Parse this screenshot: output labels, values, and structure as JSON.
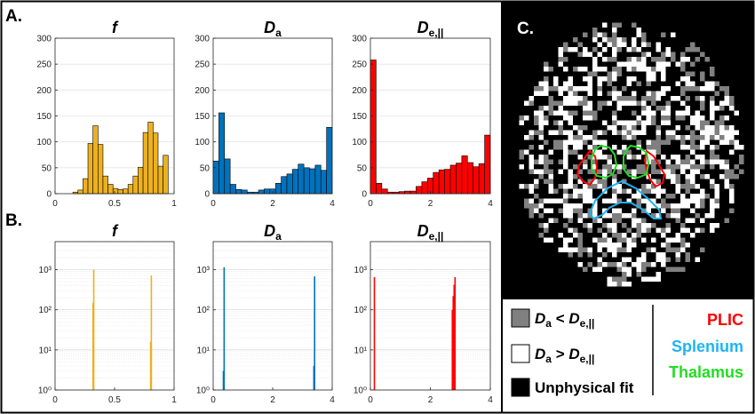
{
  "panels": {
    "a_label": "A.",
    "b_label": "B.",
    "c_label": "C."
  },
  "colors": {
    "f": "#EDB120",
    "Da": "#0072BD",
    "De": "#FF0000",
    "gray_map": "#808080",
    "plic": "#FF0000",
    "splenium": "#1EB4F0",
    "thalamus": "#22DD22"
  },
  "chart_data": [
    {
      "type": "bar",
      "id": "a-f",
      "title_main": "f",
      "title_sub": "",
      "color_key": "f",
      "scale": "linear",
      "xlim": [
        0,
        1
      ],
      "ylim": [
        0,
        300
      ],
      "xticks": [
        0,
        0.5,
        1
      ],
      "xtick_labels": [
        "0",
        "0.5",
        "1"
      ],
      "yticks": [
        0,
        50,
        100,
        150,
        200,
        250,
        300
      ],
      "ytick_labels": [
        "0",
        "50",
        "100",
        "150",
        "200",
        "250",
        "300"
      ],
      "bin_start": 0.15,
      "bin_width": 0.0421,
      "values": [
        3,
        7,
        29,
        97,
        131,
        95,
        34,
        18,
        10,
        8,
        9,
        18,
        34,
        51,
        118,
        138,
        117,
        53,
        74
      ]
    },
    {
      "type": "bar",
      "id": "a-da",
      "title_main": "D",
      "title_sub": "a",
      "color_key": "Da",
      "scale": "linear",
      "xlim": [
        0,
        4
      ],
      "ylim": [
        0,
        300
      ],
      "xticks": [
        0,
        2,
        4
      ],
      "xtick_labels": [
        "0",
        "2",
        "4"
      ],
      "yticks": [
        0,
        50,
        100,
        150,
        200,
        250,
        300
      ],
      "ytick_labels": [
        "0",
        "50",
        "100",
        "150",
        "200",
        "250",
        "300"
      ],
      "bin_start": 0,
      "bin_width": 0.1905,
      "values": [
        63,
        156,
        67,
        18,
        8,
        7,
        3,
        3,
        7,
        9,
        9,
        20,
        33,
        38,
        47,
        57,
        50,
        48,
        55,
        45,
        128
      ]
    },
    {
      "type": "bar",
      "id": "a-de",
      "title_main": "D",
      "title_sub": "e,||",
      "color_key": "De",
      "scale": "linear",
      "xlim": [
        0,
        4
      ],
      "ylim": [
        0,
        300
      ],
      "xticks": [
        0,
        2,
        4
      ],
      "xtick_labels": [
        "0",
        "2",
        "4"
      ],
      "yticks": [
        0,
        50,
        100,
        150,
        200,
        250,
        300
      ],
      "ytick_labels": [
        "0",
        "50",
        "100",
        "150",
        "200",
        "250",
        "300"
      ],
      "bin_start": 0,
      "bin_width": 0.1905,
      "values": [
        258,
        20,
        9,
        3,
        3,
        4,
        5,
        5,
        14,
        23,
        30,
        41,
        46,
        47,
        55,
        59,
        73,
        60,
        52,
        58,
        113
      ]
    },
    {
      "type": "bar",
      "id": "b-f",
      "title_main": "f",
      "title_sub": "",
      "color_key": "f",
      "scale": "log",
      "xlim": [
        0,
        1
      ],
      "ylim": [
        1,
        5000
      ],
      "xticks": [
        0,
        0.5,
        1
      ],
      "xtick_labels": [
        "0",
        "0.5",
        "1"
      ],
      "yticks": [
        1,
        10,
        100,
        1000
      ],
      "ytick_labels": [
        "10⁰",
        "10¹",
        "10²",
        "10³"
      ],
      "bin_width": 0.006,
      "bars": [
        {
          "x": 0.313,
          "v": 150
        },
        {
          "x": 0.319,
          "v": 1000
        },
        {
          "x": 0.797,
          "v": 16
        },
        {
          "x": 0.803,
          "v": 720
        }
      ]
    },
    {
      "type": "bar",
      "id": "b-da",
      "title_main": "D",
      "title_sub": "a",
      "color_key": "Da",
      "scale": "log",
      "xlim": [
        0,
        4
      ],
      "ylim": [
        1,
        5000
      ],
      "xticks": [
        0,
        2,
        4
      ],
      "xtick_labels": [
        "0",
        "2",
        "4"
      ],
      "yticks": [
        1,
        10,
        100,
        1000
      ],
      "ytick_labels": [
        "10⁰",
        "10¹",
        "10²",
        "10³"
      ],
      "bin_width": 0.024,
      "bars": [
        {
          "x": 0.32,
          "v": 3
        },
        {
          "x": 0.345,
          "v": 1150
        },
        {
          "x": 3.36,
          "v": 4
        },
        {
          "x": 3.385,
          "v": 680
        }
      ]
    },
    {
      "type": "bar",
      "id": "b-de",
      "title_main": "D",
      "title_sub": "e,||",
      "color_key": "De",
      "scale": "log",
      "xlim": [
        0,
        4
      ],
      "ylim": [
        1,
        5000
      ],
      "xticks": [
        0,
        2,
        4
      ],
      "xtick_labels": [
        "0",
        "2",
        "4"
      ],
      "yticks": [
        1,
        10,
        100,
        1000
      ],
      "ytick_labels": [
        "10⁰",
        "10¹",
        "10²",
        "10³"
      ],
      "bin_width": 0.024,
      "bars": [
        {
          "x": 0.11,
          "v": 650
        },
        {
          "x": 2.71,
          "v": 100
        },
        {
          "x": 2.74,
          "v": 220
        },
        {
          "x": 2.77,
          "v": 420
        },
        {
          "x": 2.8,
          "v": 650
        }
      ]
    }
  ],
  "legend": {
    "gray_main": "D",
    "gray_sub": "a",
    "gray_rel": " < ",
    "gray_main2": "D",
    "gray_sub2": "e,||",
    "white_main": "D",
    "white_sub": "a",
    "white_rel": " > ",
    "white_main2": "D",
    "white_sub2": "e,||",
    "black_label": "Unphysical fit"
  },
  "roi_labels": {
    "plic": "PLIC",
    "splenium": "Splenium",
    "thalamus": "Thalamus"
  }
}
